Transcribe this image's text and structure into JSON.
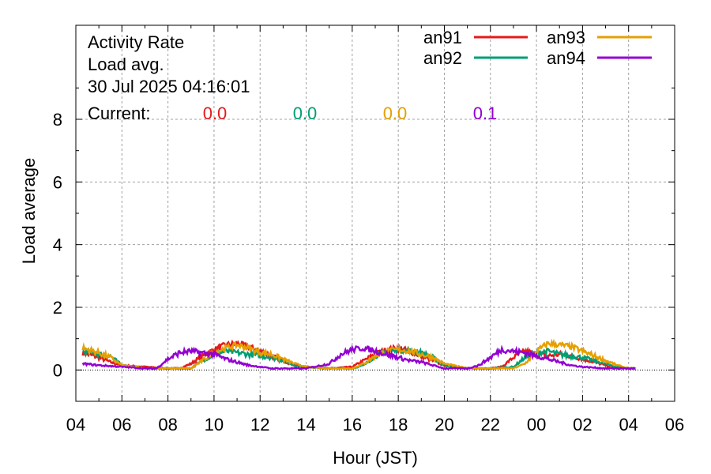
{
  "chart_data": {
    "type": "line",
    "info": {
      "line1": "Activity Rate",
      "line2": "Load avg.",
      "line3": "30 Jul 2025 04:16:01",
      "current_label": "Current:"
    },
    "xlabel": "Hour (JST)",
    "ylabel": "Load average",
    "x_unit": "hours since 04:00 JST (first tick)",
    "xlim": [
      0,
      26
    ],
    "ylim": [
      -1,
      11
    ],
    "x_ticks": [
      {
        "x": 0,
        "label": "04"
      },
      {
        "x": 2,
        "label": "06"
      },
      {
        "x": 4,
        "label": "08"
      },
      {
        "x": 6,
        "label": "10"
      },
      {
        "x": 8,
        "label": "12"
      },
      {
        "x": 10,
        "label": "14"
      },
      {
        "x": 12,
        "label": "16"
      },
      {
        "x": 14,
        "label": "18"
      },
      {
        "x": 16,
        "label": "20"
      },
      {
        "x": 18,
        "label": "22"
      },
      {
        "x": 20,
        "label": "00"
      },
      {
        "x": 22,
        "label": "02"
      },
      {
        "x": 24,
        "label": "04"
      },
      {
        "x": 26,
        "label": "06"
      }
    ],
    "y_ticks": [
      {
        "y": 0,
        "label": "0"
      },
      {
        "y": 2,
        "label": "2"
      },
      {
        "y": 4,
        "label": "4"
      },
      {
        "y": 6,
        "label": "6"
      },
      {
        "y": 8,
        "label": "8"
      }
    ],
    "grid": true,
    "legend_position": "top-right",
    "series": [
      {
        "name": "an91",
        "color": "#e41a1c",
        "current": "0.0",
        "points": [
          [
            0.3,
            0.55
          ],
          [
            1.0,
            0.4
          ],
          [
            1.5,
            0.25
          ],
          [
            2.0,
            0.15
          ],
          [
            3.0,
            0.1
          ],
          [
            4.0,
            0.05
          ],
          [
            4.5,
            0.05
          ],
          [
            5.0,
            0.2
          ],
          [
            5.5,
            0.45
          ],
          [
            6.0,
            0.65
          ],
          [
            6.5,
            0.8
          ],
          [
            7.0,
            0.85
          ],
          [
            7.5,
            0.75
          ],
          [
            8.0,
            0.6
          ],
          [
            8.5,
            0.45
          ],
          [
            9.0,
            0.3
          ],
          [
            9.5,
            0.15
          ],
          [
            10.0,
            0.1
          ],
          [
            11.0,
            0.05
          ],
          [
            12.0,
            0.1
          ],
          [
            12.5,
            0.3
          ],
          [
            13.0,
            0.5
          ],
          [
            13.5,
            0.65
          ],
          [
            14.0,
            0.7
          ],
          [
            14.5,
            0.6
          ],
          [
            15.0,
            0.45
          ],
          [
            15.5,
            0.3
          ],
          [
            16.0,
            0.15
          ],
          [
            17.0,
            0.05
          ],
          [
            18.0,
            0.05
          ],
          [
            18.5,
            0.1
          ],
          [
            19.0,
            0.4
          ],
          [
            19.5,
            0.6
          ],
          [
            20.0,
            0.5
          ],
          [
            20.5,
            0.45
          ],
          [
            21.0,
            0.5
          ],
          [
            21.5,
            0.45
          ],
          [
            22.0,
            0.35
          ],
          [
            22.5,
            0.25
          ],
          [
            23.0,
            0.15
          ],
          [
            23.5,
            0.08
          ],
          [
            24.0,
            0.05
          ],
          [
            24.3,
            0.05
          ]
        ]
      },
      {
        "name": "an92",
        "color": "#009e73",
        "current": "0.0",
        "points": [
          [
            0.3,
            0.6
          ],
          [
            1.0,
            0.5
          ],
          [
            1.5,
            0.45
          ],
          [
            2.0,
            0.15
          ],
          [
            3.0,
            0.05
          ],
          [
            4.0,
            0.05
          ],
          [
            4.5,
            0.05
          ],
          [
            5.0,
            0.05
          ],
          [
            5.5,
            0.3
          ],
          [
            6.0,
            0.5
          ],
          [
            6.5,
            0.6
          ],
          [
            7.0,
            0.55
          ],
          [
            7.5,
            0.5
          ],
          [
            8.0,
            0.45
          ],
          [
            8.5,
            0.4
          ],
          [
            9.0,
            0.3
          ],
          [
            9.5,
            0.15
          ],
          [
            10.0,
            0.1
          ],
          [
            11.0,
            0.05
          ],
          [
            12.0,
            0.05
          ],
          [
            12.5,
            0.15
          ],
          [
            13.0,
            0.45
          ],
          [
            13.5,
            0.6
          ],
          [
            14.0,
            0.65
          ],
          [
            14.5,
            0.6
          ],
          [
            15.0,
            0.55
          ],
          [
            15.5,
            0.4
          ],
          [
            16.0,
            0.15
          ],
          [
            17.0,
            0.05
          ],
          [
            18.0,
            0.05
          ],
          [
            19.0,
            0.1
          ],
          [
            19.5,
            0.4
          ],
          [
            20.0,
            0.55
          ],
          [
            20.5,
            0.6
          ],
          [
            21.0,
            0.5
          ],
          [
            21.5,
            0.45
          ],
          [
            22.0,
            0.4
          ],
          [
            22.5,
            0.3
          ],
          [
            23.0,
            0.2
          ],
          [
            23.5,
            0.1
          ],
          [
            24.0,
            0.05
          ],
          [
            24.3,
            0.05
          ]
        ]
      },
      {
        "name": "an93",
        "color": "#e69f00",
        "current": "0.0",
        "points": [
          [
            0.3,
            0.7
          ],
          [
            1.0,
            0.55
          ],
          [
            1.5,
            0.4
          ],
          [
            2.0,
            0.15
          ],
          [
            3.0,
            0.05
          ],
          [
            4.0,
            0.05
          ],
          [
            4.5,
            0.05
          ],
          [
            5.0,
            0.05
          ],
          [
            5.5,
            0.3
          ],
          [
            6.0,
            0.55
          ],
          [
            6.5,
            0.7
          ],
          [
            7.0,
            0.8
          ],
          [
            7.5,
            0.7
          ],
          [
            8.0,
            0.55
          ],
          [
            8.5,
            0.5
          ],
          [
            9.0,
            0.35
          ],
          [
            9.5,
            0.2
          ],
          [
            10.0,
            0.1
          ],
          [
            11.0,
            0.05
          ],
          [
            12.0,
            0.05
          ],
          [
            12.5,
            0.2
          ],
          [
            13.0,
            0.45
          ],
          [
            13.5,
            0.6
          ],
          [
            14.0,
            0.65
          ],
          [
            14.5,
            0.6
          ],
          [
            15.0,
            0.5
          ],
          [
            15.5,
            0.4
          ],
          [
            16.0,
            0.2
          ],
          [
            17.0,
            0.05
          ],
          [
            18.0,
            0.05
          ],
          [
            19.0,
            0.05
          ],
          [
            19.5,
            0.2
          ],
          [
            20.0,
            0.6
          ],
          [
            20.5,
            0.85
          ],
          [
            21.0,
            0.8
          ],
          [
            21.5,
            0.75
          ],
          [
            22.0,
            0.6
          ],
          [
            22.5,
            0.45
          ],
          [
            23.0,
            0.3
          ],
          [
            23.5,
            0.15
          ],
          [
            24.0,
            0.05
          ],
          [
            24.3,
            0.05
          ]
        ]
      },
      {
        "name": "an94",
        "color": "#9400d3",
        "current": "0.1",
        "points": [
          [
            0.3,
            0.2
          ],
          [
            1.0,
            0.15
          ],
          [
            2.0,
            0.1
          ],
          [
            3.0,
            0.05
          ],
          [
            3.5,
            0.05
          ],
          [
            4.0,
            0.35
          ],
          [
            4.5,
            0.55
          ],
          [
            5.0,
            0.6
          ],
          [
            5.5,
            0.55
          ],
          [
            6.0,
            0.5
          ],
          [
            6.5,
            0.35
          ],
          [
            7.0,
            0.25
          ],
          [
            7.5,
            0.15
          ],
          [
            8.0,
            0.1
          ],
          [
            8.5,
            0.05
          ],
          [
            9.0,
            0.05
          ],
          [
            10.0,
            0.05
          ],
          [
            11.0,
            0.2
          ],
          [
            11.5,
            0.5
          ],
          [
            12.0,
            0.65
          ],
          [
            12.5,
            0.7
          ],
          [
            13.0,
            0.6
          ],
          [
            13.5,
            0.5
          ],
          [
            14.0,
            0.4
          ],
          [
            14.5,
            0.3
          ],
          [
            15.0,
            0.25
          ],
          [
            15.5,
            0.15
          ],
          [
            16.0,
            0.05
          ],
          [
            17.0,
            0.05
          ],
          [
            17.5,
            0.15
          ],
          [
            18.0,
            0.4
          ],
          [
            18.5,
            0.65
          ],
          [
            19.0,
            0.6
          ],
          [
            19.5,
            0.55
          ],
          [
            20.0,
            0.45
          ],
          [
            20.5,
            0.35
          ],
          [
            21.0,
            0.25
          ],
          [
            21.5,
            0.15
          ],
          [
            22.0,
            0.1
          ],
          [
            23.0,
            0.05
          ],
          [
            24.0,
            0.05
          ],
          [
            24.3,
            0.05
          ]
        ]
      }
    ]
  }
}
